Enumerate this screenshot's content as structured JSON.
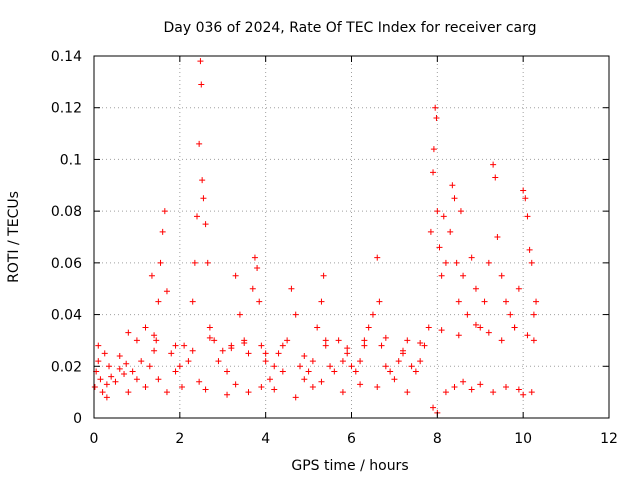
{
  "chart_data": {
    "type": "scatter",
    "title": "Day 036 of 2024, Rate Of TEC Index for receiver carg",
    "xlabel": "GPS time / hours",
    "ylabel": "ROTI / TECUs",
    "xlim": [
      0,
      12
    ],
    "ylim": [
      0,
      0.14
    ],
    "x_ticks": [
      0,
      2,
      4,
      6,
      8,
      10,
      12
    ],
    "x_tick_labels": [
      "0",
      "2",
      "4",
      "6",
      "8",
      "10",
      "12"
    ],
    "y_ticks": [
      0,
      0.02,
      0.04,
      0.06,
      0.08,
      0.1,
      0.12,
      0.14
    ],
    "y_tick_labels": [
      "0",
      "0.02",
      "0.04",
      "0.06",
      "0.08",
      "0.1",
      "0.12",
      "0.14"
    ],
    "grid": true,
    "marker": "+",
    "series": [
      {
        "name": "ROTI",
        "color": "#ff0000",
        "x": [
          0.02,
          0.05,
          0.1,
          0.15,
          0.2,
          0.25,
          0.3,
          0.35,
          0.4,
          0.5,
          0.6,
          0.7,
          0.75,
          0.8,
          0.9,
          1.0,
          1.1,
          1.2,
          1.3,
          1.35,
          1.4,
          1.45,
          1.5,
          1.55,
          1.6,
          1.65,
          1.7,
          1.8,
          1.9,
          2.0,
          2.1,
          2.2,
          2.3,
          2.35,
          2.4,
          2.45,
          2.48,
          2.5,
          2.52,
          2.55,
          2.6,
          2.65,
          2.7,
          2.8,
          2.9,
          3.0,
          3.1,
          3.2,
          3.3,
          3.4,
          3.5,
          3.6,
          3.7,
          3.75,
          3.8,
          3.85,
          3.9,
          4.0,
          4.1,
          4.2,
          4.3,
          4.4,
          4.5,
          4.6,
          4.7,
          4.8,
          4.9,
          5.0,
          5.1,
          5.2,
          5.3,
          5.35,
          5.4,
          5.5,
          5.6,
          5.7,
          5.8,
          5.9,
          6.0,
          6.1,
          6.2,
          6.3,
          6.4,
          6.5,
          6.6,
          6.65,
          6.7,
          6.8,
          6.9,
          7.0,
          7.1,
          7.2,
          7.3,
          7.4,
          7.5,
          7.6,
          7.7,
          7.8,
          7.85,
          7.9,
          7.92,
          7.95,
          7.98,
          8.0,
          8.05,
          8.1,
          8.15,
          8.2,
          8.3,
          8.35,
          8.4,
          8.45,
          8.5,
          8.55,
          8.6,
          8.7,
          8.8,
          8.9,
          9.0,
          9.1,
          9.2,
          9.3,
          9.35,
          9.4,
          9.5,
          9.6,
          9.7,
          9.8,
          9.9,
          10.0,
          10.05,
          10.1,
          10.15,
          10.2,
          10.25,
          10.3,
          0.3,
          0.8,
          1.2,
          1.5,
          1.7,
          2.05,
          2.45,
          2.6,
          3.1,
          3.3,
          3.6,
          3.9,
          4.2,
          4.7,
          5.1,
          5.3,
          5.8,
          6.2,
          6.6,
          7.3,
          7.9,
          8.0,
          8.2,
          8.4,
          8.6,
          8.8,
          9.0,
          9.3,
          9.6,
          9.9,
          10.0,
          10.2,
          0.1,
          0.6,
          1.0,
          1.4,
          1.9,
          2.3,
          2.7,
          3.2,
          3.5,
          4.0,
          4.4,
          4.9,
          5.4,
          5.9,
          6.3,
          6.8,
          7.2,
          7.6,
          8.1,
          8.5,
          8.9,
          9.2,
          9.5,
          9.8,
          10.1,
          10.25
        ],
        "y": [
          0.012,
          0.018,
          0.022,
          0.015,
          0.01,
          0.025,
          0.013,
          0.02,
          0.016,
          0.014,
          0.019,
          0.017,
          0.021,
          0.033,
          0.018,
          0.015,
          0.022,
          0.035,
          0.02,
          0.055,
          0.026,
          0.03,
          0.045,
          0.06,
          0.072,
          0.08,
          0.049,
          0.025,
          0.018,
          0.02,
          0.028,
          0.022,
          0.045,
          0.06,
          0.078,
          0.106,
          0.138,
          0.129,
          0.092,
          0.085,
          0.075,
          0.06,
          0.035,
          0.03,
          0.022,
          0.026,
          0.018,
          0.028,
          0.055,
          0.04,
          0.03,
          0.025,
          0.05,
          0.062,
          0.058,
          0.045,
          0.028,
          0.022,
          0.015,
          0.02,
          0.025,
          0.018,
          0.03,
          0.05,
          0.04,
          0.02,
          0.015,
          0.018,
          0.022,
          0.035,
          0.045,
          0.055,
          0.028,
          0.02,
          0.018,
          0.03,
          0.022,
          0.025,
          0.02,
          0.018,
          0.022,
          0.03,
          0.035,
          0.04,
          0.062,
          0.045,
          0.028,
          0.02,
          0.018,
          0.015,
          0.022,
          0.025,
          0.03,
          0.02,
          0.018,
          0.022,
          0.028,
          0.035,
          0.072,
          0.095,
          0.104,
          0.12,
          0.116,
          0.08,
          0.066,
          0.055,
          0.078,
          0.06,
          0.072,
          0.09,
          0.085,
          0.06,
          0.045,
          0.08,
          0.055,
          0.04,
          0.062,
          0.05,
          0.035,
          0.045,
          0.06,
          0.098,
          0.093,
          0.07,
          0.055,
          0.045,
          0.04,
          0.035,
          0.05,
          0.088,
          0.085,
          0.078,
          0.065,
          0.06,
          0.04,
          0.045,
          0.008,
          0.01,
          0.012,
          0.015,
          0.01,
          0.012,
          0.014,
          0.011,
          0.009,
          0.013,
          0.01,
          0.012,
          0.011,
          0.008,
          0.012,
          0.014,
          0.01,
          0.013,
          0.012,
          0.01,
          0.004,
          0.002,
          0.01,
          0.012,
          0.014,
          0.011,
          0.013,
          0.01,
          0.012,
          0.011,
          0.009,
          0.01,
          0.028,
          0.024,
          0.03,
          0.032,
          0.028,
          0.026,
          0.031,
          0.027,
          0.029,
          0.025,
          0.028,
          0.024,
          0.03,
          0.027,
          0.028,
          0.031,
          0.026,
          0.029,
          0.034,
          0.032,
          0.036,
          0.033,
          0.03,
          0.035,
          0.032,
          0.03
        ]
      }
    ]
  }
}
